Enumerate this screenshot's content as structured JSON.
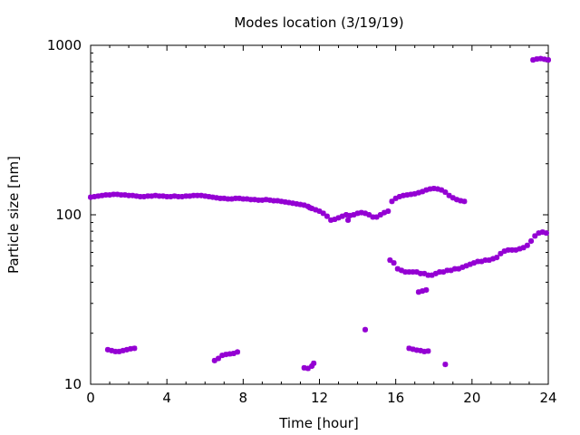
{
  "chart_data": {
    "type": "scatter",
    "title": "Modes location (3/19/19)",
    "xlabel": "Time [hour]",
    "ylabel": "Particle size [nm]",
    "xlim": [
      0,
      24
    ],
    "ylim": [
      10,
      1000
    ],
    "yscale": "log",
    "grid": false,
    "legend": "none",
    "marker_color": "#9400D3",
    "x_ticks": [
      0,
      4,
      8,
      12,
      16,
      20,
      24
    ],
    "y_ticks": [
      10,
      100,
      1000
    ],
    "x_tick_labels": [
      "0",
      "4",
      "8",
      "12",
      "16",
      "20",
      "24"
    ],
    "y_tick_labels": [
      "10",
      "100",
      "1000"
    ],
    "series": [
      {
        "points": [
          [
            0.0,
            127
          ],
          [
            0.2,
            128
          ],
          [
            0.4,
            129
          ],
          [
            0.6,
            130
          ],
          [
            0.8,
            131
          ],
          [
            1.0,
            131
          ],
          [
            1.2,
            132
          ],
          [
            1.4,
            132
          ],
          [
            1.6,
            131
          ],
          [
            1.8,
            131
          ],
          [
            2.0,
            130
          ],
          [
            2.2,
            130
          ],
          [
            2.4,
            129
          ],
          [
            2.6,
            128
          ],
          [
            2.8,
            128
          ],
          [
            3.0,
            129
          ],
          [
            3.2,
            129
          ],
          [
            3.4,
            130
          ],
          [
            3.6,
            129
          ],
          [
            3.8,
            129
          ],
          [
            4.0,
            128
          ],
          [
            4.2,
            128
          ],
          [
            4.4,
            129
          ],
          [
            4.6,
            128
          ],
          [
            4.8,
            128
          ],
          [
            5.0,
            129
          ],
          [
            5.2,
            129
          ],
          [
            5.4,
            130
          ],
          [
            5.6,
            130
          ],
          [
            5.8,
            130
          ],
          [
            6.0,
            129
          ],
          [
            6.2,
            128
          ],
          [
            6.4,
            127
          ],
          [
            6.6,
            126
          ],
          [
            6.8,
            125
          ],
          [
            7.0,
            125
          ],
          [
            7.2,
            124
          ],
          [
            7.4,
            124
          ],
          [
            7.6,
            125
          ],
          [
            7.8,
            125
          ],
          [
            8.0,
            124
          ],
          [
            8.2,
            124
          ],
          [
            8.4,
            123
          ],
          [
            8.6,
            123
          ],
          [
            8.8,
            122
          ],
          [
            9.0,
            122
          ],
          [
            9.2,
            123
          ],
          [
            9.4,
            122
          ],
          [
            9.6,
            121
          ],
          [
            9.8,
            121
          ],
          [
            10.0,
            120
          ],
          [
            10.2,
            119
          ],
          [
            10.4,
            118
          ],
          [
            10.6,
            117
          ],
          [
            10.8,
            116
          ],
          [
            11.0,
            115
          ],
          [
            11.2,
            114
          ],
          [
            11.4,
            112
          ],
          [
            11.6,
            109
          ],
          [
            11.8,
            107
          ],
          [
            12.0,
            105
          ],
          [
            12.2,
            102
          ],
          [
            12.4,
            98
          ],
          [
            12.6,
            93
          ],
          [
            12.8,
            94
          ],
          [
            13.0,
            96
          ],
          [
            13.2,
            98
          ],
          [
            13.4,
            100
          ],
          [
            13.6,
            99
          ],
          [
            13.8,
            100
          ],
          [
            14.0,
            102
          ],
          [
            14.2,
            103
          ],
          [
            14.4,
            102
          ],
          [
            14.6,
            100
          ],
          [
            14.8,
            97
          ],
          [
            15.0,
            97
          ],
          [
            15.2,
            100
          ],
          [
            15.4,
            103
          ],
          [
            15.6,
            105
          ],
          [
            15.8,
            120
          ],
          [
            16.0,
            125
          ],
          [
            16.2,
            128
          ],
          [
            16.4,
            130
          ],
          [
            16.6,
            131
          ],
          [
            16.8,
            132
          ],
          [
            17.0,
            133
          ],
          [
            17.2,
            135
          ],
          [
            17.4,
            137
          ],
          [
            17.6,
            140
          ],
          [
            17.8,
            142
          ],
          [
            18.0,
            143
          ],
          [
            18.2,
            142
          ],
          [
            18.4,
            140
          ],
          [
            18.6,
            136
          ],
          [
            18.8,
            130
          ],
          [
            19.0,
            126
          ],
          [
            19.2,
            123
          ],
          [
            19.4,
            121
          ],
          [
            19.6,
            120
          ],
          [
            13.5,
            93
          ],
          [
            11.5,
            110
          ],
          [
            23.2,
            820
          ],
          [
            23.4,
            830
          ],
          [
            23.6,
            835
          ],
          [
            23.8,
            828
          ],
          [
            24.0,
            820
          ],
          [
            15.7,
            54
          ],
          [
            15.9,
            52
          ],
          [
            16.1,
            48
          ],
          [
            16.3,
            47
          ],
          [
            16.5,
            46
          ],
          [
            16.7,
            46
          ],
          [
            16.9,
            46
          ],
          [
            17.1,
            46
          ],
          [
            17.3,
            45
          ],
          [
            17.5,
            45
          ],
          [
            17.7,
            44
          ],
          [
            17.9,
            44
          ],
          [
            18.1,
            45
          ],
          [
            18.3,
            46
          ],
          [
            18.5,
            46
          ],
          [
            18.7,
            47
          ],
          [
            18.9,
            47
          ],
          [
            19.1,
            48
          ],
          [
            19.3,
            48
          ],
          [
            19.5,
            49
          ],
          [
            19.7,
            50
          ],
          [
            19.9,
            51
          ],
          [
            20.1,
            52
          ],
          [
            20.3,
            53
          ],
          [
            20.5,
            53
          ],
          [
            20.7,
            54
          ],
          [
            20.9,
            54
          ],
          [
            21.1,
            55
          ],
          [
            21.3,
            56
          ],
          [
            21.5,
            59
          ],
          [
            21.7,
            61
          ],
          [
            21.9,
            62
          ],
          [
            22.1,
            62
          ],
          [
            22.3,
            62
          ],
          [
            22.5,
            63
          ],
          [
            22.7,
            64
          ],
          [
            22.9,
            66
          ],
          [
            23.1,
            70
          ],
          [
            23.3,
            75
          ],
          [
            23.5,
            78
          ],
          [
            23.7,
            79
          ],
          [
            23.9,
            78
          ],
          [
            17.2,
            35
          ],
          [
            17.4,
            35.5
          ],
          [
            17.6,
            36
          ],
          [
            14.4,
            21
          ],
          [
            0.9,
            16
          ],
          [
            1.1,
            15.8
          ],
          [
            1.3,
            15.6
          ],
          [
            1.5,
            15.6
          ],
          [
            1.7,
            15.8
          ],
          [
            1.9,
            16
          ],
          [
            2.1,
            16.2
          ],
          [
            2.3,
            16.3
          ],
          [
            6.5,
            13.8
          ],
          [
            6.7,
            14.2
          ],
          [
            6.9,
            14.8
          ],
          [
            7.1,
            15
          ],
          [
            7.3,
            15.1
          ],
          [
            7.5,
            15.2
          ],
          [
            7.7,
            15.5
          ],
          [
            11.2,
            12.5
          ],
          [
            11.4,
            12.4
          ],
          [
            11.6,
            12.8
          ],
          [
            11.7,
            13.3
          ],
          [
            16.7,
            16.3
          ],
          [
            16.9,
            16.1
          ],
          [
            17.1,
            15.9
          ],
          [
            17.3,
            15.8
          ],
          [
            17.5,
            15.6
          ],
          [
            17.7,
            15.7
          ],
          [
            18.6,
            13.1
          ]
        ]
      }
    ]
  }
}
